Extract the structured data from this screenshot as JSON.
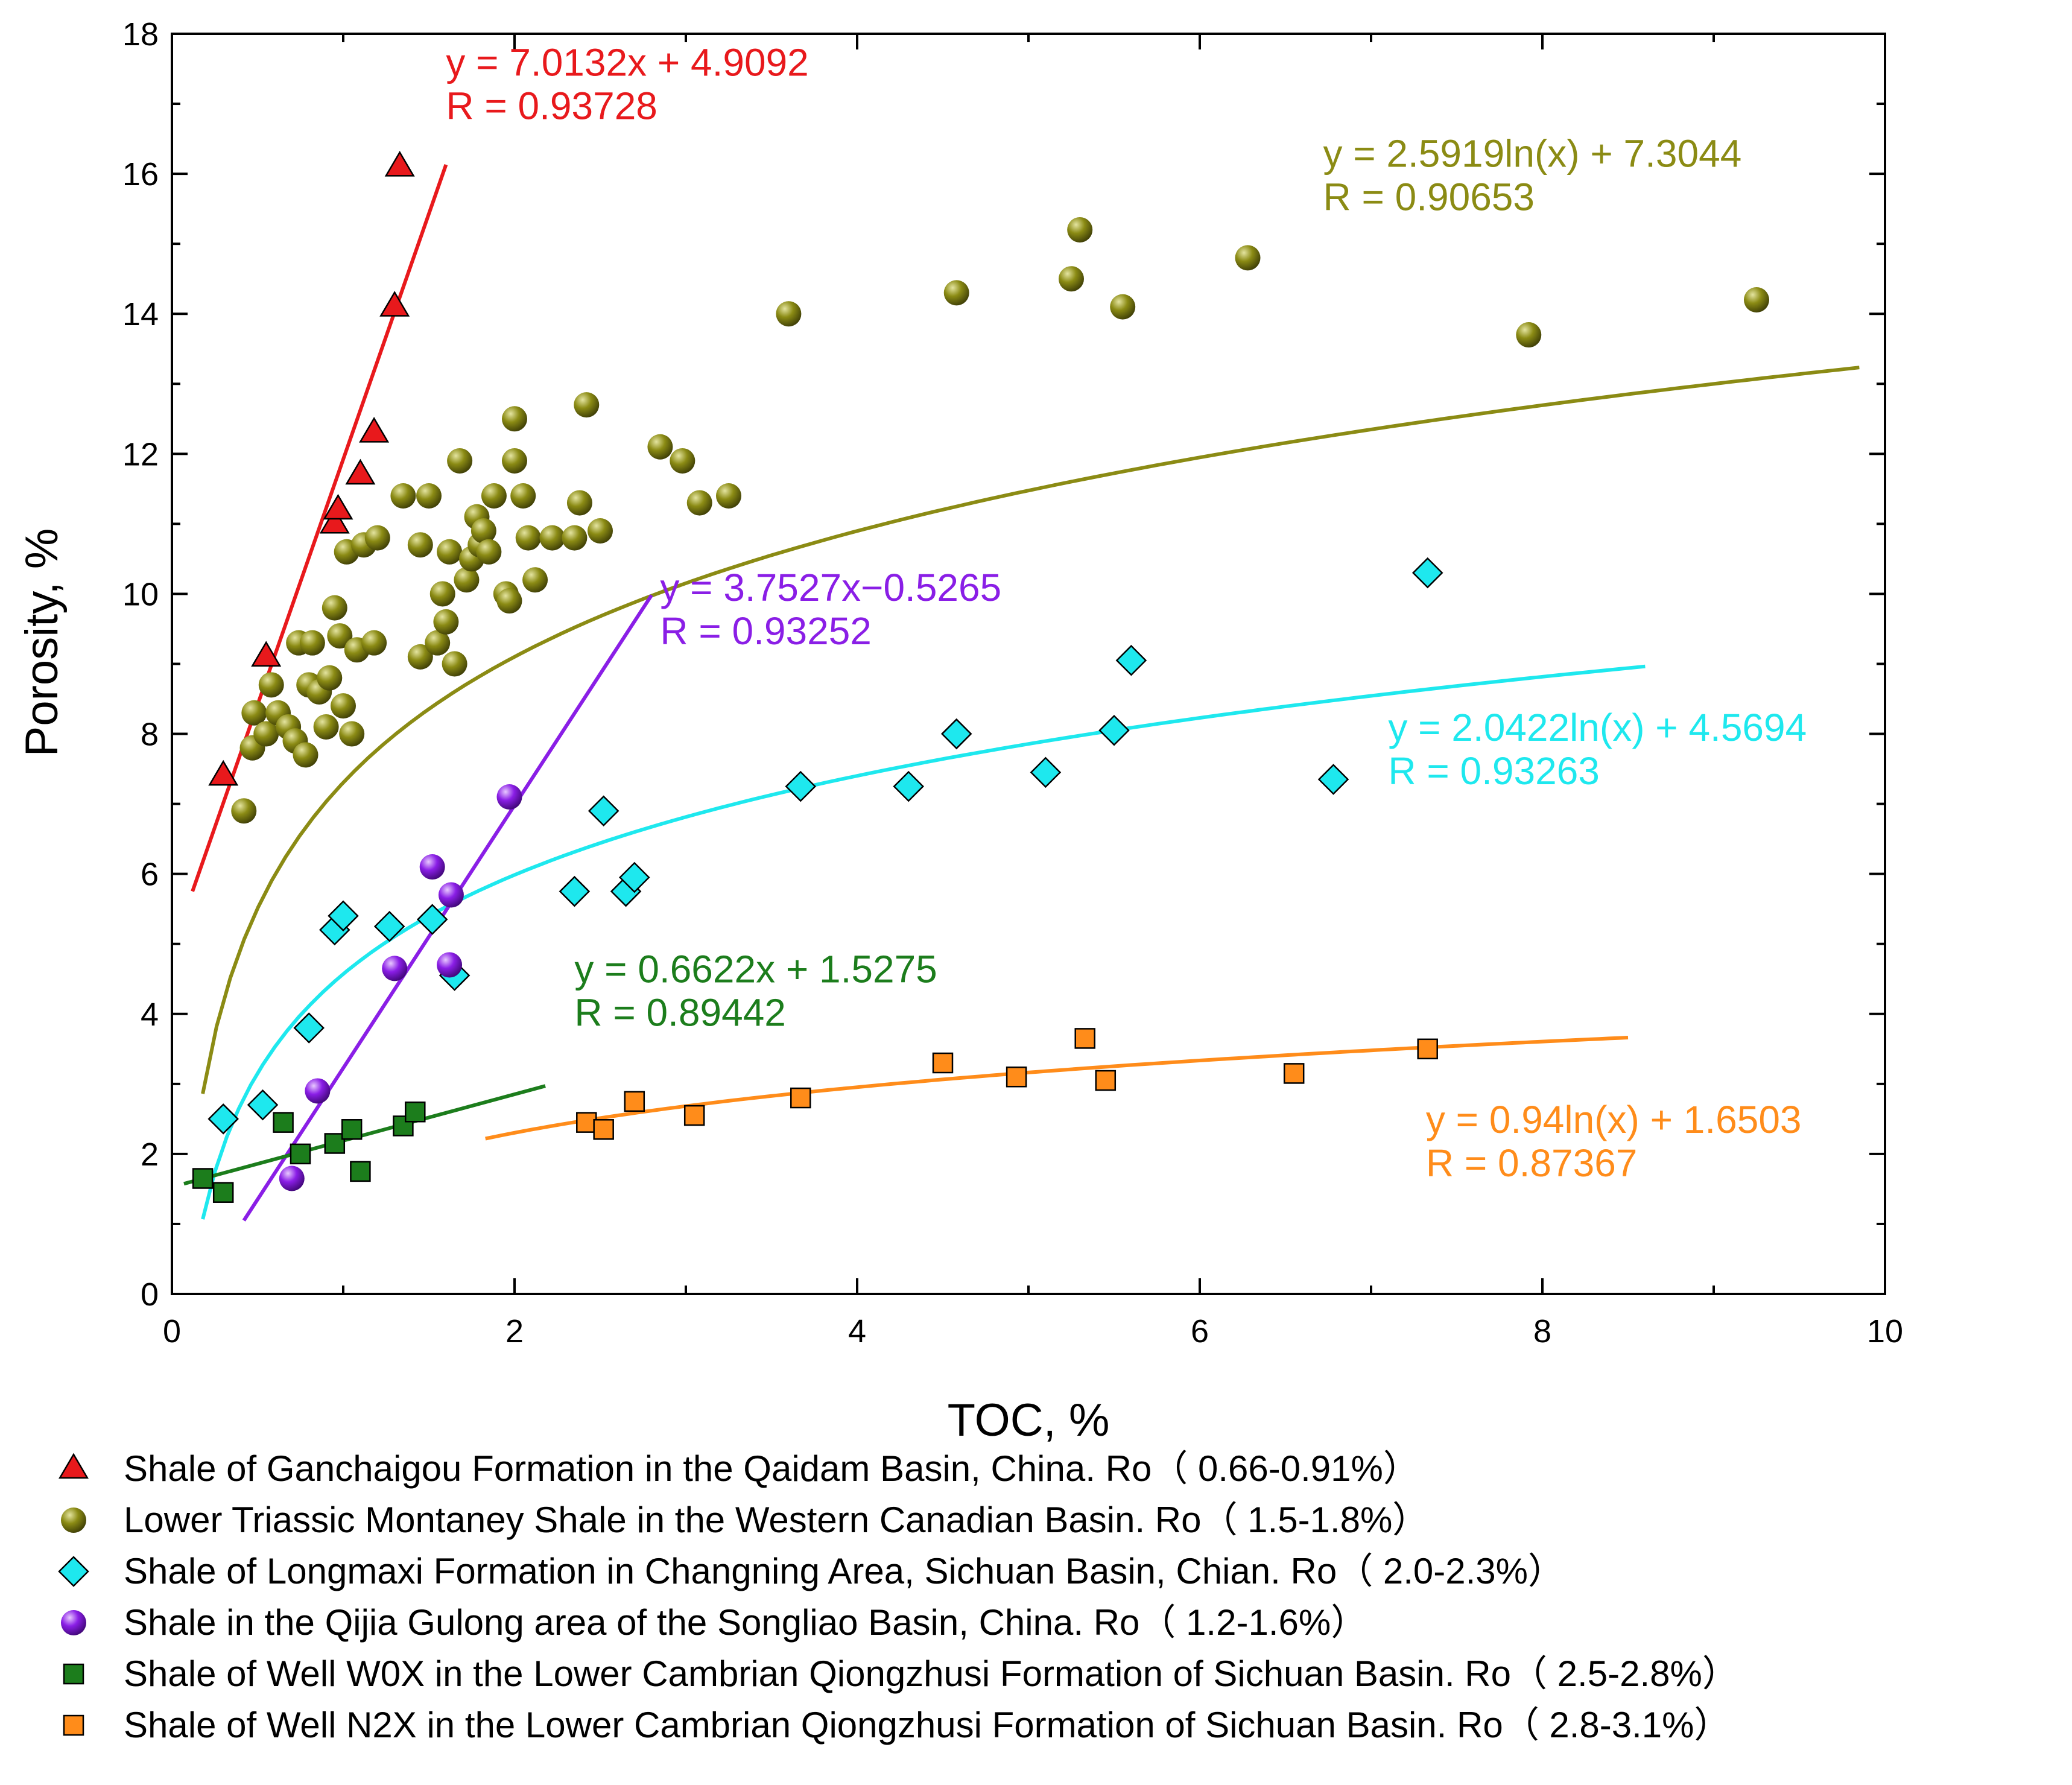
{
  "chart_data": {
    "type": "scatter",
    "xlabel": "TOC, %",
    "ylabel": "Porosity, %",
    "xlim": [
      0,
      10
    ],
    "ylim": [
      0,
      18
    ],
    "xticks": [
      0,
      2,
      4,
      6,
      8,
      10
    ],
    "yticks": [
      0,
      2,
      4,
      6,
      8,
      10,
      12,
      14,
      16,
      18
    ],
    "grid": false,
    "legend_position": "bottom",
    "series": [
      {
        "id": "ganchaigou",
        "name": "Shale of Ganchaigou Formation in the Qaidam Basin, China. Ro（ 0.66-0.91%）",
        "marker": "triangle",
        "color": "#e8191c",
        "points": [
          [
            0.3,
            7.4
          ],
          [
            0.55,
            9.1
          ],
          [
            0.95,
            11.0
          ],
          [
            0.97,
            11.2
          ],
          [
            1.1,
            11.7
          ],
          [
            1.18,
            12.3
          ],
          [
            1.3,
            14.1
          ],
          [
            1.33,
            16.1
          ]
        ],
        "fit": {
          "kind": "linear",
          "a": 7.0132,
          "b": 4.9092,
          "x_range": [
            0.12,
            1.6
          ],
          "equation": "y = 7.0132x + 4.9092",
          "r": "R = 0.93728",
          "anchor": [
            1.6,
            17.4
          ]
        }
      },
      {
        "id": "montaney",
        "name": "Lower Triassic Montaney Shale in the Western Canadian Basin. Ro（ 1.5-1.8%）",
        "marker": "sphere",
        "color": "#8b8b14",
        "points": [
          [
            0.42,
            6.9
          ],
          [
            0.47,
            7.8
          ],
          [
            0.48,
            8.3
          ],
          [
            0.55,
            8.0
          ],
          [
            0.58,
            8.7
          ],
          [
            0.62,
            8.3
          ],
          [
            0.68,
            8.1
          ],
          [
            0.72,
            7.9
          ],
          [
            0.74,
            9.3
          ],
          [
            0.78,
            7.7
          ],
          [
            0.8,
            8.7
          ],
          [
            0.82,
            9.3
          ],
          [
            0.86,
            8.6
          ],
          [
            0.9,
            8.1
          ],
          [
            0.92,
            8.8
          ],
          [
            0.95,
            9.8
          ],
          [
            0.98,
            9.4
          ],
          [
            1.0,
            8.4
          ],
          [
            1.02,
            10.6
          ],
          [
            1.05,
            8.0
          ],
          [
            1.08,
            9.2
          ],
          [
            1.12,
            10.7
          ],
          [
            1.18,
            9.3
          ],
          [
            1.2,
            10.8
          ],
          [
            1.35,
            11.4
          ],
          [
            1.45,
            10.7
          ],
          [
            1.45,
            9.1
          ],
          [
            1.5,
            11.4
          ],
          [
            1.55,
            9.3
          ],
          [
            1.58,
            10.0
          ],
          [
            1.6,
            9.6
          ],
          [
            1.62,
            10.6
          ],
          [
            1.65,
            9.0
          ],
          [
            1.68,
            11.9
          ],
          [
            1.72,
            10.2
          ],
          [
            1.75,
            10.5
          ],
          [
            1.78,
            11.1
          ],
          [
            1.8,
            10.7
          ],
          [
            1.82,
            10.9
          ],
          [
            1.85,
            10.6
          ],
          [
            1.88,
            11.4
          ],
          [
            1.95,
            10.0
          ],
          [
            1.97,
            9.9
          ],
          [
            2.0,
            11.9
          ],
          [
            2.0,
            12.5
          ],
          [
            2.05,
            11.4
          ],
          [
            2.08,
            10.8
          ],
          [
            2.12,
            10.2
          ],
          [
            2.22,
            10.8
          ],
          [
            2.35,
            10.8
          ],
          [
            2.38,
            11.3
          ],
          [
            2.42,
            12.7
          ],
          [
            2.5,
            10.9
          ],
          [
            2.85,
            12.1
          ],
          [
            2.98,
            11.9
          ],
          [
            3.08,
            11.3
          ],
          [
            3.25,
            11.4
          ],
          [
            3.6,
            14.0
          ],
          [
            4.58,
            14.3
          ],
          [
            5.25,
            14.5
          ],
          [
            5.3,
            15.2
          ],
          [
            5.55,
            14.1
          ],
          [
            6.28,
            14.8
          ],
          [
            7.92,
            13.7
          ],
          [
            9.25,
            14.2
          ]
        ],
        "fit": {
          "kind": "log",
          "a": 2.5919,
          "b": 7.3044,
          "x_range": [
            0.18,
            9.85
          ],
          "equation": "y = 2.5919ln(x) + 7.3044",
          "r": "R = 0.90653",
          "anchor": [
            6.72,
            16.1
          ]
        }
      },
      {
        "id": "longmaxi",
        "name": "Shale of Longmaxi Formation in Changning Area, Sichuan Basin, Chian. Ro（ 2.0-2.3%）",
        "marker": "diamond",
        "color": "#1ee8ee",
        "points": [
          [
            0.3,
            2.5
          ],
          [
            0.53,
            2.7
          ],
          [
            0.8,
            3.8
          ],
          [
            0.95,
            5.2
          ],
          [
            1.0,
            5.4
          ],
          [
            1.27,
            5.25
          ],
          [
            1.52,
            5.35
          ],
          [
            1.65,
            4.55
          ],
          [
            2.35,
            5.75
          ],
          [
            2.52,
            6.9
          ],
          [
            2.65,
            5.75
          ],
          [
            2.7,
            5.95
          ],
          [
            3.67,
            7.25
          ],
          [
            4.3,
            7.25
          ],
          [
            4.58,
            8.0
          ],
          [
            5.1,
            7.45
          ],
          [
            5.5,
            8.05
          ],
          [
            5.6,
            9.05
          ],
          [
            6.78,
            7.35
          ],
          [
            7.33,
            10.3
          ]
        ],
        "fit": {
          "kind": "log",
          "a": 2.0422,
          "b": 4.5694,
          "x_range": [
            0.18,
            8.6
          ],
          "equation": "y = 2.0422ln(x) + 4.5694",
          "r": "R = 0.93263",
          "anchor": [
            7.1,
            7.9
          ]
        }
      },
      {
        "id": "qijia",
        "name": "Shale in the Qijia Gulong area of the Songliao Basin, China. Ro（ 1.2-1.6%）",
        "marker": "sphere",
        "color": "#8a1ee6",
        "points": [
          [
            0.7,
            1.65
          ],
          [
            0.85,
            2.9
          ],
          [
            1.3,
            4.65
          ],
          [
            1.52,
            6.1
          ],
          [
            1.62,
            4.7
          ],
          [
            1.63,
            5.7
          ],
          [
            1.97,
            7.1
          ]
        ],
        "fit": {
          "kind": "linear",
          "a": 3.7527,
          "b": -0.5265,
          "x_range": [
            0.42,
            2.8
          ],
          "equation": "y = 3.7527x−0.5265",
          "r": "R = 0.93252",
          "anchor": [
            2.85,
            9.9
          ]
        }
      },
      {
        "id": "w0x",
        "name": "Shale of Well W0X in the Lower Cambrian Qiongzhusi Formation of Sichuan Basin. Ro（ 2.5-2.8%）",
        "marker": "square",
        "color": "#1c7d1c",
        "points": [
          [
            0.18,
            1.65
          ],
          [
            0.3,
            1.45
          ],
          [
            0.65,
            2.45
          ],
          [
            0.75,
            2.0
          ],
          [
            0.95,
            2.15
          ],
          [
            1.05,
            2.35
          ],
          [
            1.1,
            1.75
          ],
          [
            1.35,
            2.4
          ],
          [
            1.42,
            2.6
          ]
        ],
        "fit": {
          "kind": "linear",
          "a": 0.6622,
          "b": 1.5275,
          "x_range": [
            0.07,
            2.18
          ],
          "equation": "y = 0.6622x + 1.5275",
          "r": "R = 0.89442",
          "anchor": [
            2.35,
            4.45
          ]
        }
      },
      {
        "id": "n2x",
        "name": "Shale of Well N2X in the Lower Cambrian Qiongzhusi Formation of Sichuan Basin. Ro（ 2.8-3.1%）",
        "marker": "square",
        "color": "#ff8c1a",
        "points": [
          [
            2.42,
            2.45
          ],
          [
            2.52,
            2.35
          ],
          [
            2.7,
            2.75
          ],
          [
            3.05,
            2.55
          ],
          [
            3.67,
            2.8
          ],
          [
            4.5,
            3.3
          ],
          [
            4.93,
            3.1
          ],
          [
            5.33,
            3.65
          ],
          [
            5.45,
            3.05
          ],
          [
            6.55,
            3.15
          ],
          [
            7.33,
            3.5
          ]
        ],
        "fit": {
          "kind": "log",
          "a": 0.94,
          "b": 1.6503,
          "x_range": [
            1.83,
            8.5
          ],
          "equation": "y = 0.94ln(x) + 1.6503",
          "r": "R = 0.87367",
          "anchor": [
            7.32,
            2.3
          ]
        }
      }
    ]
  }
}
